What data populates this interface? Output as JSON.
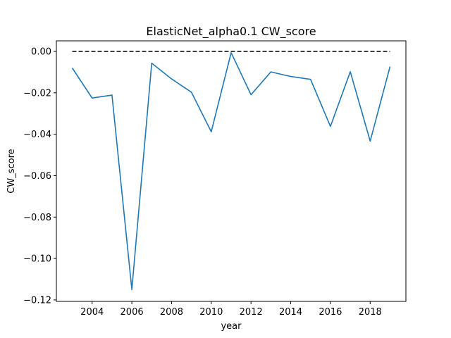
{
  "chart_data": {
    "type": "line",
    "title": "ElasticNet_alpha0.1 CW_score",
    "xlabel": "year",
    "ylabel": "CW_score",
    "xlim": [
      2002.2,
      2019.8
    ],
    "ylim": [
      -0.1207,
      0.0051
    ],
    "x_ticks": [
      2004,
      2006,
      2008,
      2010,
      2012,
      2014,
      2016,
      2018
    ],
    "y_ticks": [
      0.0,
      -0.02,
      -0.04,
      -0.06,
      -0.08,
      -0.1,
      -0.12
    ],
    "y_tick_labels": [
      "0.00",
      "−0.02",
      "−0.04",
      "−0.06",
      "−0.08",
      "−0.10",
      "−0.12"
    ],
    "grid": false,
    "series": [
      {
        "color": "#1f77b4",
        "style": "solid",
        "x": [
          2003,
          2004,
          2005,
          2006,
          2007,
          2008,
          2009,
          2010,
          2011,
          2012,
          2013,
          2014,
          2015,
          2016,
          2017,
          2018,
          2019
        ],
        "y": [
          -0.008,
          -0.0225,
          -0.0211,
          -0.115,
          -0.0057,
          -0.0133,
          -0.0197,
          -0.0388,
          -0.0006,
          -0.0209,
          -0.0099,
          -0.0121,
          -0.0135,
          -0.0362,
          -0.0098,
          -0.0433,
          -0.0073
        ]
      },
      {
        "color": "#000000",
        "style": "dashed",
        "x": [
          2003,
          2019
        ],
        "y": [
          0.0,
          0.0
        ]
      }
    ]
  }
}
